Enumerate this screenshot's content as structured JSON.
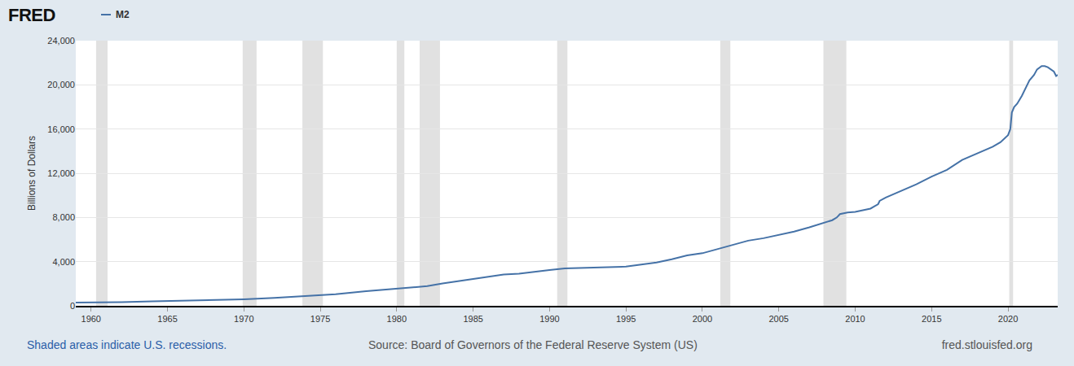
{
  "chart_data": {
    "type": "line",
    "logo": "FRED",
    "y_label": "Billions of Dollars",
    "recession_note": "Shaded areas indicate U.S. recessions.",
    "source": "Source: Board of Governors of the Federal Reserve System (US)",
    "url": "fred.stlouisfed.org",
    "x": [
      1959.0,
      1960,
      1962,
      1964,
      1966,
      1968,
      1970,
      1972,
      1974,
      1976,
      1978,
      1980,
      1982,
      1983,
      1984,
      1986,
      1987,
      1988,
      1989,
      1990,
      1991,
      1992,
      1993,
      1994,
      1995,
      1996,
      1997,
      1998,
      1999,
      2000,
      2001,
      2002,
      2003,
      2004,
      2005,
      2006,
      2007,
      2008,
      2008.5,
      2008.8,
      2009.0,
      2009.5,
      2010,
      2010.5,
      2011,
      2011.5,
      2011.6,
      2012,
      2013,
      2014,
      2015,
      2016,
      2017,
      2018,
      2019,
      2019.5,
      2019.9,
      2020.0,
      2020.15,
      2020.25,
      2020.4,
      2020.6,
      2020.9,
      2021.2,
      2021.4,
      2021.7,
      2021.9,
      2022.2,
      2022.4,
      2022.6,
      2022.8,
      2023.0,
      2023.15,
      2023.25
    ],
    "series": [
      {
        "name": "M2",
        "color": "#4572a7",
        "values": [
          298,
          300,
          330,
          400,
          460,
          540,
          590,
          710,
          860,
          1050,
          1320,
          1530,
          1780,
          2030,
          2220,
          2650,
          2840,
          2910,
          3050,
          3240,
          3390,
          3440,
          3490,
          3520,
          3550,
          3730,
          3920,
          4220,
          4560,
          4760,
          5130,
          5480,
          5900,
          6120,
          6430,
          6720,
          7100,
          7520,
          7750,
          8000,
          8300,
          8440,
          8500,
          8650,
          8800,
          9200,
          9500,
          9800,
          10400,
          11000,
          11700,
          12300,
          13200,
          13800,
          14400,
          14800,
          15300,
          15450,
          16000,
          17500,
          18000,
          18300,
          19000,
          19900,
          20400,
          20900,
          21400,
          21700,
          21700,
          21600,
          21400,
          21200,
          20800,
          20900
        ]
      }
    ],
    "recessions": [
      [
        1960.33,
        1961.08
      ],
      [
        1969.92,
        1970.83
      ],
      [
        1973.83,
        1975.17
      ],
      [
        1980.0,
        1980.5
      ],
      [
        1981.5,
        1982.83
      ],
      [
        1990.5,
        1991.17
      ],
      [
        2001.17,
        2001.83
      ],
      [
        2007.92,
        2009.42
      ],
      [
        2020.08,
        2020.33
      ]
    ],
    "xlim": [
      1959.0,
      2023.25
    ],
    "xticks": [
      1960,
      1965,
      1970,
      1975,
      1980,
      1985,
      1990,
      1995,
      2000,
      2005,
      2010,
      2015,
      2020
    ],
    "ylim": [
      0,
      24000
    ],
    "yticks": [
      0,
      {
        "value": 4000,
        "label": "4,000"
      },
      {
        "value": 8000,
        "label": "8,000"
      },
      {
        "value": 12000,
        "label": "12,000"
      },
      {
        "value": 16000,
        "label": "16,000"
      },
      {
        "value": 20000,
        "label": "20,000"
      },
      {
        "value": 24000,
        "label": "24,000"
      }
    ],
    "grid": true
  }
}
